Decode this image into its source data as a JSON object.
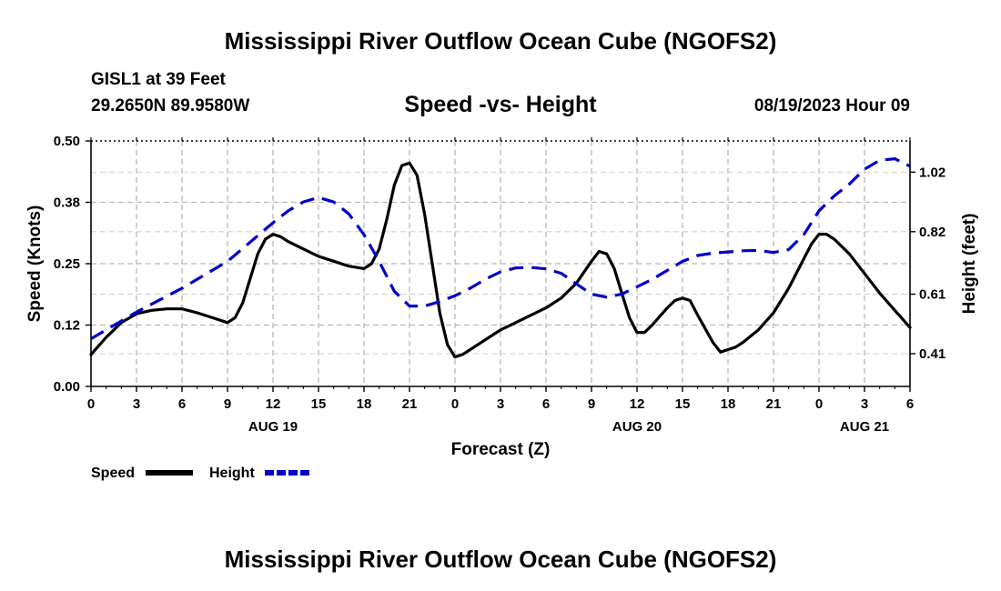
{
  "header": {
    "title": "Mississippi River Outflow Ocean Cube (NGOFS2)",
    "station": "GISL1 at 39 Feet",
    "coords": "29.2650N  89.9580W",
    "subtitle": "Speed -vs- Height",
    "datetime": "08/19/2023 Hour 09"
  },
  "footer": {
    "title": "Mississippi River Outflow Ocean Cube (NGOFS2)"
  },
  "chart_data": {
    "type": "line",
    "title": "Speed -vs- Height",
    "xlabel": "Forecast (Z)",
    "ylabel": "Speed (Knots)",
    "y2label": "Height (feet)",
    "x_range_hours": [
      0,
      54
    ],
    "x_ticks": [
      {
        "h": 0,
        "label": "0"
      },
      {
        "h": 3,
        "label": "3"
      },
      {
        "h": 6,
        "label": "6"
      },
      {
        "h": 9,
        "label": "9"
      },
      {
        "h": 12,
        "label": "12"
      },
      {
        "h": 15,
        "label": "15"
      },
      {
        "h": 18,
        "label": "18"
      },
      {
        "h": 21,
        "label": "21"
      },
      {
        "h": 24,
        "label": "0"
      },
      {
        "h": 27,
        "label": "3"
      },
      {
        "h": 30,
        "label": "6"
      },
      {
        "h": 33,
        "label": "9"
      },
      {
        "h": 36,
        "label": "12"
      },
      {
        "h": 39,
        "label": "15"
      },
      {
        "h": 42,
        "label": "18"
      },
      {
        "h": 45,
        "label": "21"
      },
      {
        "h": 48,
        "label": "0"
      },
      {
        "h": 51,
        "label": "3"
      },
      {
        "h": 54,
        "label": "6"
      }
    ],
    "date_labels": [
      {
        "h": 12,
        "label": "AUG 19"
      },
      {
        "h": 36,
        "label": "AUG 20"
      },
      {
        "h": 51,
        "label": "AUG 21"
      }
    ],
    "y_left": {
      "range": [
        0,
        0.5
      ],
      "ticks": [
        0,
        0.125,
        0.25,
        0.375,
        0.5
      ],
      "labels": [
        "0.00",
        "0.12",
        "0.25",
        "0.38",
        "0.50"
      ]
    },
    "y_right": {
      "range": [
        0.3,
        1.125
      ],
      "ticks": [
        0.41,
        0.61,
        0.82,
        1.02
      ],
      "labels": [
        "0.41",
        "0.61",
        "0.82",
        "1.02"
      ]
    },
    "grid": true,
    "legend": "bottom-left",
    "series": [
      {
        "name": "Speed",
        "color": "#000000",
        "axis": "left",
        "dash": "solid",
        "x": [
          0,
          1,
          2,
          3,
          4,
          5,
          6,
          7,
          8,
          9,
          9.5,
          10,
          10.5,
          11,
          11.5,
          12,
          12.5,
          13,
          14,
          15,
          16,
          17,
          18,
          18.5,
          19,
          19.5,
          20,
          20.5,
          21,
          21.5,
          22,
          22.5,
          23,
          23.5,
          24,
          24.5,
          25,
          26,
          27,
          28,
          29,
          30,
          31,
          32,
          33,
          33.5,
          34,
          34.5,
          35,
          35.5,
          36,
          36.5,
          37,
          38,
          38.5,
          39,
          39.5,
          40,
          41,
          41.5,
          42,
          42.5,
          43,
          44,
          45,
          46,
          47,
          47.5,
          48,
          48.5,
          49,
          50,
          51,
          52,
          53,
          54
        ],
        "values": [
          0.065,
          0.1,
          0.13,
          0.148,
          0.155,
          0.158,
          0.158,
          0.15,
          0.14,
          0.13,
          0.14,
          0.17,
          0.22,
          0.27,
          0.3,
          0.31,
          0.305,
          0.295,
          0.28,
          0.265,
          0.255,
          0.245,
          0.24,
          0.25,
          0.28,
          0.34,
          0.41,
          0.45,
          0.455,
          0.43,
          0.35,
          0.25,
          0.15,
          0.085,
          0.06,
          0.065,
          0.075,
          0.095,
          0.115,
          0.13,
          0.145,
          0.16,
          0.18,
          0.21,
          0.255,
          0.275,
          0.27,
          0.24,
          0.19,
          0.14,
          0.11,
          0.11,
          0.125,
          0.16,
          0.175,
          0.18,
          0.175,
          0.145,
          0.09,
          0.07,
          0.075,
          0.08,
          0.09,
          0.115,
          0.15,
          0.2,
          0.26,
          0.29,
          0.31,
          0.31,
          0.3,
          0.27,
          0.23,
          0.19,
          0.155,
          0.12
        ]
      },
      {
        "name": "Height",
        "color": "#0000cc",
        "axis": "right",
        "dash": "dashed",
        "x": [
          0,
          3,
          6,
          9,
          12,
          13,
          14,
          15,
          16,
          17,
          18,
          19,
          20,
          21,
          22,
          23,
          24,
          25,
          26,
          27,
          28,
          29,
          30,
          31,
          32,
          33,
          34,
          35,
          36,
          37,
          38,
          39,
          40,
          41,
          42,
          43,
          44,
          45,
          46,
          47,
          48,
          49,
          50,
          51,
          52,
          53,
          54
        ],
        "values": [
          0.46,
          0.55,
          0.63,
          0.72,
          0.85,
          0.89,
          0.92,
          0.935,
          0.92,
          0.88,
          0.81,
          0.72,
          0.62,
          0.57,
          0.57,
          0.585,
          0.605,
          0.63,
          0.66,
          0.685,
          0.698,
          0.7,
          0.695,
          0.68,
          0.645,
          0.61,
          0.6,
          0.61,
          0.635,
          0.66,
          0.69,
          0.72,
          0.74,
          0.748,
          0.752,
          0.756,
          0.757,
          0.75,
          0.76,
          0.81,
          0.89,
          0.94,
          0.98,
          1.03,
          1.06,
          1.065,
          1.04
        ]
      }
    ]
  }
}
